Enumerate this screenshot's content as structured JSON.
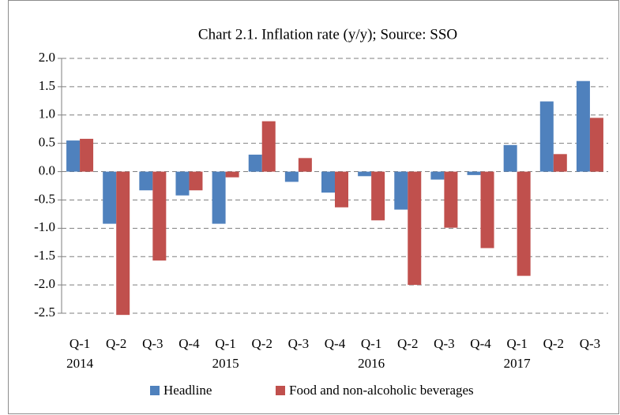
{
  "chart_data": {
    "type": "bar",
    "title": "Chart 2.1. Inflation rate (y/y); Source:  SSO",
    "categories": [
      "Q-1",
      "Q-2",
      "Q-3",
      "Q-4",
      "Q-1",
      "Q-2",
      "Q-3",
      "Q-4",
      "Q-1",
      "Q-2",
      "Q-3",
      "Q-4",
      "Q-1",
      "Q-2",
      "Q-3"
    ],
    "x_groups": [
      "2014",
      null,
      null,
      null,
      "2015",
      null,
      null,
      null,
      "2016",
      null,
      null,
      null,
      "2017",
      null,
      null
    ],
    "series": [
      {
        "name": "Headline",
        "color": "#4f81bd",
        "values": [
          0.55,
          -0.92,
          -0.33,
          -0.42,
          -0.92,
          0.3,
          -0.18,
          -0.37,
          -0.08,
          -0.67,
          -0.14,
          -0.06,
          0.47,
          1.24,
          1.6
        ]
      },
      {
        "name": "Food and non-alcoholic beverages",
        "color": "#c0504d",
        "values": [
          0.58,
          -2.53,
          -1.57,
          -0.33,
          -0.1,
          0.89,
          0.24,
          -0.63,
          -0.86,
          -2.0,
          -0.99,
          -1.35,
          -1.84,
          0.31,
          0.95
        ]
      }
    ],
    "ylim": [
      -2.5,
      2.0
    ],
    "yticks": [
      {
        "value": 2.0,
        "label": "2.0"
      },
      1.5,
      {
        "value": 1.0,
        "label": "1.0"
      },
      0.5,
      {
        "value": 0.0,
        "label": "0.0"
      },
      -0.5,
      {
        "value": -1.0,
        "label": "-1.0"
      },
      -1.5,
      {
        "value": -2.0,
        "label": "-2.0"
      },
      -2.5
    ],
    "grid": true,
    "legend": "bottom"
  }
}
